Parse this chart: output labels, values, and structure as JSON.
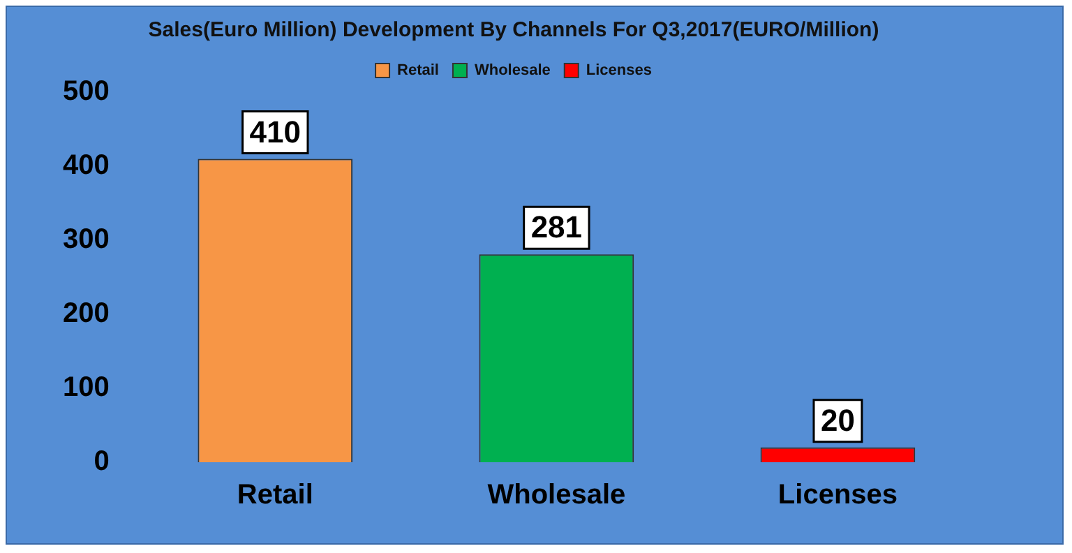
{
  "chart_data": {
    "type": "bar",
    "title": "Sales(Euro Million) Development By Channels For Q3,2017(EURO/Million)",
    "categories": [
      "Retail",
      "Wholesale",
      "Licenses"
    ],
    "series": [
      {
        "name": "Retail",
        "color": "#f79646",
        "values": [
          410,
          null,
          null
        ]
      },
      {
        "name": "Wholesale",
        "color": "#00b050",
        "values": [
          null,
          281,
          null
        ]
      },
      {
        "name": "Licenses",
        "color": "#ff0000",
        "values": [
          null,
          null,
          20
        ]
      }
    ],
    "ylim": [
      0,
      500
    ],
    "yticks": [
      0,
      100,
      200,
      300,
      400,
      500
    ],
    "grid": false,
    "legend": "top",
    "data_labels": true
  }
}
